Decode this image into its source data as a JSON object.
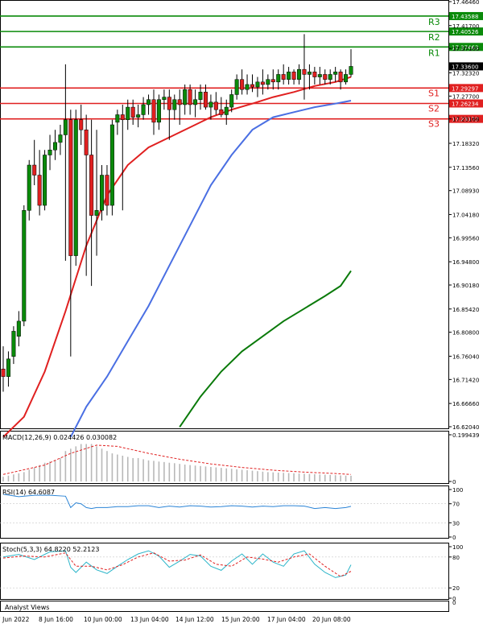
{
  "chart_data": {
    "type": "candlestick",
    "symbol_note": "",
    "y_ticks": [
      "17.46460",
      "17.41700",
      "17.37160",
      "17.32320",
      "17.27700",
      "17.23168",
      "17.18320",
      "17.13560",
      "17.08930",
      "17.04180",
      "16.99560",
      "16.94800",
      "16.90180",
      "16.85420",
      "16.80800",
      "16.76040",
      "16.71420",
      "16.66660",
      "16.62040"
    ],
    "ylim": [
      16.6204,
      17.4646
    ],
    "x_ticks": [
      "7 Jun 2022",
      "8 Jun 16:00",
      "10 Jun 00:00",
      "13 Jun 04:00",
      "14 Jun 12:00",
      "15 Jun 20:00",
      "17 Jun 04:00",
      "20 Jun 08:00"
    ],
    "current_price": "17.33600",
    "levels": [
      {
        "name": "R3",
        "value": 17.43588,
        "label": "17.43588",
        "kind": "resistance"
      },
      {
        "name": "R2",
        "value": 17.40526,
        "label": "17.40526",
        "kind": "resistance"
      },
      {
        "name": "R1",
        "value": 17.37463,
        "label": "17.37463",
        "kind": "resistance"
      },
      {
        "name": "S1",
        "value": 17.29297,
        "label": "17.29297",
        "kind": "support"
      },
      {
        "name": "S2",
        "value": 17.26234,
        "label": "17.26234",
        "kind": "support"
      },
      {
        "name": "S3",
        "value": 17.23172,
        "label": "17.23172",
        "kind": "support"
      }
    ],
    "candles": [
      {
        "o": 16.735,
        "h": 16.78,
        "l": 16.69,
        "c": 16.72
      },
      {
        "o": 16.72,
        "h": 16.77,
        "l": 16.7,
        "c": 16.755
      },
      {
        "o": 16.76,
        "h": 16.82,
        "l": 16.745,
        "c": 16.81
      },
      {
        "o": 16.8,
        "h": 16.85,
        "l": 16.78,
        "c": 16.83
      },
      {
        "o": 16.83,
        "h": 17.06,
        "l": 16.82,
        "c": 17.05
      },
      {
        "o": 17.05,
        "h": 17.15,
        "l": 17.03,
        "c": 17.14
      },
      {
        "o": 17.14,
        "h": 17.19,
        "l": 17.1,
        "c": 17.12
      },
      {
        "o": 17.12,
        "h": 17.17,
        "l": 17.04,
        "c": 17.06
      },
      {
        "o": 17.06,
        "h": 17.17,
        "l": 17.05,
        "c": 17.16
      },
      {
        "o": 17.16,
        "h": 17.2,
        "l": 17.13,
        "c": 17.17
      },
      {
        "o": 17.17,
        "h": 17.21,
        "l": 17.15,
        "c": 17.185
      },
      {
        "o": 17.185,
        "h": 17.22,
        "l": 17.16,
        "c": 17.2
      },
      {
        "o": 17.2,
        "h": 17.34,
        "l": 16.95,
        "c": 17.23
      },
      {
        "o": 17.23,
        "h": 17.25,
        "l": 16.76,
        "c": 16.96
      },
      {
        "o": 16.96,
        "h": 17.25,
        "l": 16.94,
        "c": 17.23
      },
      {
        "o": 17.23,
        "h": 17.26,
        "l": 17.18,
        "c": 17.21
      },
      {
        "o": 17.21,
        "h": 17.24,
        "l": 16.92,
        "c": 17.16
      },
      {
        "o": 17.16,
        "h": 17.23,
        "l": 16.9,
        "c": 17.04
      },
      {
        "o": 17.04,
        "h": 17.21,
        "l": 16.96,
        "c": 17.05
      },
      {
        "o": 17.05,
        "h": 17.14,
        "l": 17.03,
        "c": 17.12
      },
      {
        "o": 17.12,
        "h": 17.14,
        "l": 17.04,
        "c": 17.06
      },
      {
        "o": 17.06,
        "h": 17.23,
        "l": 17.04,
        "c": 17.22
      },
      {
        "o": 17.225,
        "h": 17.25,
        "l": 17.2,
        "c": 17.24
      },
      {
        "o": 17.24,
        "h": 17.26,
        "l": 17.05,
        "c": 17.23
      },
      {
        "o": 17.23,
        "h": 17.27,
        "l": 17.21,
        "c": 17.255
      },
      {
        "o": 17.255,
        "h": 17.27,
        "l": 17.22,
        "c": 17.235
      },
      {
        "o": 17.235,
        "h": 17.26,
        "l": 17.215,
        "c": 17.24
      },
      {
        "o": 17.24,
        "h": 17.275,
        "l": 17.23,
        "c": 17.26
      },
      {
        "o": 17.26,
        "h": 17.28,
        "l": 17.24,
        "c": 17.27
      },
      {
        "o": 17.27,
        "h": 17.29,
        "l": 17.2,
        "c": 17.225
      },
      {
        "o": 17.225,
        "h": 17.28,
        "l": 17.21,
        "c": 17.27
      },
      {
        "o": 17.27,
        "h": 17.29,
        "l": 17.25,
        "c": 17.275
      },
      {
        "o": 17.275,
        "h": 17.29,
        "l": 17.19,
        "c": 17.25
      },
      {
        "o": 17.25,
        "h": 17.28,
        "l": 17.23,
        "c": 17.27
      },
      {
        "o": 17.27,
        "h": 17.29,
        "l": 17.22,
        "c": 17.26
      },
      {
        "o": 17.26,
        "h": 17.3,
        "l": 17.24,
        "c": 17.29
      },
      {
        "o": 17.29,
        "h": 17.3,
        "l": 17.24,
        "c": 17.26
      },
      {
        "o": 17.26,
        "h": 17.29,
        "l": 17.235,
        "c": 17.27
      },
      {
        "o": 17.27,
        "h": 17.3,
        "l": 17.25,
        "c": 17.285
      },
      {
        "o": 17.285,
        "h": 17.3,
        "l": 17.25,
        "c": 17.255
      },
      {
        "o": 17.255,
        "h": 17.28,
        "l": 17.23,
        "c": 17.265
      },
      {
        "o": 17.265,
        "h": 17.285,
        "l": 17.24,
        "c": 17.25
      },
      {
        "o": 17.25,
        "h": 17.275,
        "l": 17.235,
        "c": 17.24
      },
      {
        "o": 17.24,
        "h": 17.27,
        "l": 17.22,
        "c": 17.255
      },
      {
        "o": 17.255,
        "h": 17.29,
        "l": 17.245,
        "c": 17.28
      },
      {
        "o": 17.28,
        "h": 17.32,
        "l": 17.27,
        "c": 17.31
      },
      {
        "o": 17.31,
        "h": 17.33,
        "l": 17.28,
        "c": 17.29
      },
      {
        "o": 17.29,
        "h": 17.32,
        "l": 17.28,
        "c": 17.3
      },
      {
        "o": 17.3,
        "h": 17.32,
        "l": 17.285,
        "c": 17.295
      },
      {
        "o": 17.295,
        "h": 17.315,
        "l": 17.275,
        "c": 17.305
      },
      {
        "o": 17.305,
        "h": 17.33,
        "l": 17.28,
        "c": 17.3
      },
      {
        "o": 17.3,
        "h": 17.32,
        "l": 17.29,
        "c": 17.31
      },
      {
        "o": 17.31,
        "h": 17.33,
        "l": 17.29,
        "c": 17.305
      },
      {
        "o": 17.305,
        "h": 17.33,
        "l": 17.29,
        "c": 17.32
      },
      {
        "o": 17.32,
        "h": 17.34,
        "l": 17.3,
        "c": 17.31
      },
      {
        "o": 17.31,
        "h": 17.335,
        "l": 17.3,
        "c": 17.325
      },
      {
        "o": 17.325,
        "h": 17.33,
        "l": 17.3,
        "c": 17.31
      },
      {
        "o": 17.31,
        "h": 17.34,
        "l": 17.3,
        "c": 17.33
      },
      {
        "o": 17.33,
        "h": 17.4,
        "l": 17.27,
        "c": 17.32
      },
      {
        "o": 17.32,
        "h": 17.34,
        "l": 17.29,
        "c": 17.325
      },
      {
        "o": 17.325,
        "h": 17.335,
        "l": 17.3,
        "c": 17.315
      },
      {
        "o": 17.315,
        "h": 17.335,
        "l": 17.3,
        "c": 17.32
      },
      {
        "o": 17.32,
        "h": 17.33,
        "l": 17.3,
        "c": 17.31
      },
      {
        "o": 17.31,
        "h": 17.33,
        "l": 17.3,
        "c": 17.32
      },
      {
        "o": 17.32,
        "h": 17.335,
        "l": 17.305,
        "c": 17.325
      },
      {
        "o": 17.325,
        "h": 17.33,
        "l": 17.29,
        "c": 17.305
      },
      {
        "o": 17.305,
        "h": 17.33,
        "l": 17.3,
        "c": 17.32
      },
      {
        "o": 17.32,
        "h": 17.37,
        "l": 17.315,
        "c": 17.336
      }
    ],
    "ma_lines": [
      {
        "color": "#e02020",
        "points": [
          [
            0,
            16.6
          ],
          [
            4,
            16.64
          ],
          [
            8,
            16.73
          ],
          [
            12,
            16.85
          ],
          [
            16,
            16.98
          ],
          [
            20,
            17.08
          ],
          [
            24,
            17.14
          ],
          [
            28,
            17.175
          ],
          [
            32,
            17.195
          ],
          [
            36,
            17.215
          ],
          [
            40,
            17.235
          ],
          [
            44,
            17.25
          ],
          [
            48,
            17.262
          ],
          [
            52,
            17.275
          ],
          [
            56,
            17.285
          ],
          [
            60,
            17.297
          ],
          [
            64,
            17.305
          ],
          [
            67,
            17.315
          ]
        ]
      },
      {
        "color": "#4a6fe3",
        "points": [
          [
            13,
            16.6
          ],
          [
            16,
            16.66
          ],
          [
            20,
            16.72
          ],
          [
            24,
            16.79
          ],
          [
            28,
            16.86
          ],
          [
            32,
            16.94
          ],
          [
            36,
            17.02
          ],
          [
            40,
            17.1
          ],
          [
            44,
            17.16
          ],
          [
            48,
            17.21
          ],
          [
            52,
            17.235
          ],
          [
            56,
            17.245
          ],
          [
            60,
            17.255
          ],
          [
            64,
            17.262
          ],
          [
            67,
            17.268
          ]
        ]
      },
      {
        "color": "#0a7a0a",
        "points": [
          [
            34,
            16.62
          ],
          [
            38,
            16.68
          ],
          [
            42,
            16.73
          ],
          [
            46,
            16.77
          ],
          [
            50,
            16.8
          ],
          [
            54,
            16.83
          ],
          [
            58,
            16.855
          ],
          [
            62,
            16.88
          ],
          [
            65,
            16.9
          ],
          [
            67,
            16.93
          ]
        ]
      }
    ],
    "macd": {
      "label": "MACD(12,26,9) 0.024426 0.030082",
      "axis": [
        "0.199439",
        "0"
      ],
      "hist": [
        0.02,
        0.025,
        0.03,
        0.035,
        0.04,
        0.05,
        0.06,
        0.07,
        0.08,
        0.085,
        0.09,
        0.1,
        0.13,
        0.14,
        0.15,
        0.16,
        0.16,
        0.16,
        0.15,
        0.14,
        0.13,
        0.12,
        0.115,
        0.11,
        0.105,
        0.1,
        0.1,
        0.095,
        0.09,
        0.088,
        0.085,
        0.083,
        0.08,
        0.078,
        0.075,
        0.072,
        0.07,
        0.068,
        0.066,
        0.064,
        0.062,
        0.06,
        0.058,
        0.056,
        0.054,
        0.052,
        0.05,
        0.048,
        0.046,
        0.044,
        0.042,
        0.04,
        0.039,
        0.038,
        0.037,
        0.036,
        0.035,
        0.034,
        0.033,
        0.032,
        0.031,
        0.03,
        0.029,
        0.028,
        0.027,
        0.026,
        0.025,
        0.0244
      ],
      "signal": [
        [
          0,
          0.03
        ],
        [
          8,
          0.07
        ],
        [
          13,
          0.12
        ],
        [
          18,
          0.155
        ],
        [
          22,
          0.15
        ],
        [
          28,
          0.12
        ],
        [
          34,
          0.095
        ],
        [
          40,
          0.075
        ],
        [
          46,
          0.06
        ],
        [
          52,
          0.048
        ],
        [
          58,
          0.04
        ],
        [
          64,
          0.034
        ],
        [
          67,
          0.03
        ]
      ]
    },
    "rsi": {
      "label": "RSI(14) 64.6087",
      "axis": [
        "100",
        "70",
        "30",
        "0"
      ],
      "points": [
        [
          0,
          90
        ],
        [
          3,
          85
        ],
        [
          6,
          88
        ],
        [
          9,
          88
        ],
        [
          12,
          86
        ],
        [
          13,
          62
        ],
        [
          14,
          72
        ],
        [
          15,
          70
        ],
        [
          16,
          62
        ],
        [
          17,
          60
        ],
        [
          18,
          62
        ],
        [
          20,
          62
        ],
        [
          22,
          64
        ],
        [
          24,
          64
        ],
        [
          26,
          66
        ],
        [
          28,
          66
        ],
        [
          30,
          62
        ],
        [
          32,
          65
        ],
        [
          34,
          63
        ],
        [
          36,
          66
        ],
        [
          38,
          65
        ],
        [
          40,
          63
        ],
        [
          42,
          64
        ],
        [
          44,
          66
        ],
        [
          46,
          65
        ],
        [
          48,
          63
        ],
        [
          50,
          65
        ],
        [
          52,
          64
        ],
        [
          54,
          66
        ],
        [
          56,
          66
        ],
        [
          58,
          65
        ],
        [
          60,
          60
        ],
        [
          62,
          62
        ],
        [
          64,
          60
        ],
        [
          66,
          62
        ],
        [
          67,
          64.6
        ]
      ]
    },
    "stoch": {
      "label": "Stoch(5,3,3) 64.8220 52.2123",
      "axis": [
        "100",
        "80",
        "20",
        "0"
      ],
      "k": [
        [
          0,
          80
        ],
        [
          3,
          85
        ],
        [
          6,
          75
        ],
        [
          9,
          90
        ],
        [
          12,
          92
        ],
        [
          13,
          60
        ],
        [
          14,
          50
        ],
        [
          16,
          70
        ],
        [
          18,
          55
        ],
        [
          20,
          48
        ],
        [
          22,
          62
        ],
        [
          24,
          75
        ],
        [
          26,
          86
        ],
        [
          28,
          92
        ],
        [
          30,
          82
        ],
        [
          32,
          60
        ],
        [
          34,
          72
        ],
        [
          36,
          85
        ],
        [
          38,
          82
        ],
        [
          40,
          62
        ],
        [
          42,
          54
        ],
        [
          44,
          72
        ],
        [
          46,
          86
        ],
        [
          48,
          66
        ],
        [
          50,
          86
        ],
        [
          52,
          70
        ],
        [
          54,
          62
        ],
        [
          56,
          86
        ],
        [
          58,
          92
        ],
        [
          60,
          66
        ],
        [
          62,
          50
        ],
        [
          64,
          40
        ],
        [
          66,
          45
        ],
        [
          67,
          64.8
        ]
      ],
      "d": [
        [
          0,
          78
        ],
        [
          4,
          82
        ],
        [
          8,
          80
        ],
        [
          12,
          88
        ],
        [
          14,
          62
        ],
        [
          17,
          62
        ],
        [
          20,
          55
        ],
        [
          23,
          65
        ],
        [
          26,
          80
        ],
        [
          29,
          88
        ],
        [
          32,
          72
        ],
        [
          35,
          74
        ],
        [
          38,
          84
        ],
        [
          41,
          66
        ],
        [
          44,
          62
        ],
        [
          47,
          80
        ],
        [
          50,
          76
        ],
        [
          53,
          70
        ],
        [
          56,
          80
        ],
        [
          59,
          86
        ],
        [
          62,
          62
        ],
        [
          65,
          42
        ],
        [
          67,
          52.2
        ]
      ]
    },
    "footer_label": "Analyst Views"
  }
}
